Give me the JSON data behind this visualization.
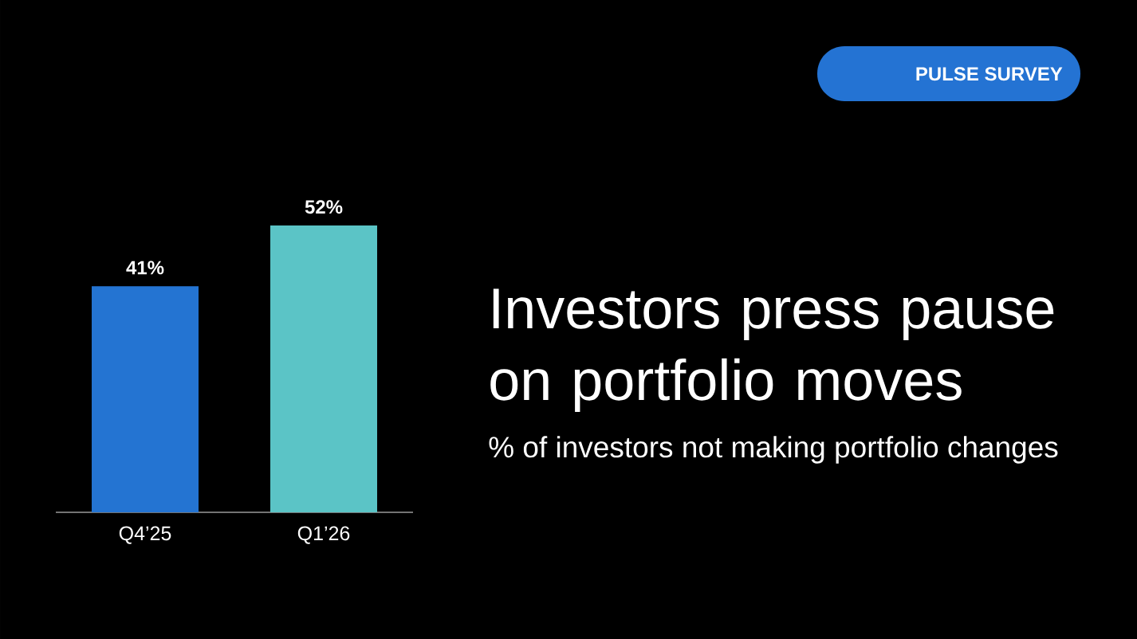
{
  "chart_data": {
    "type": "bar",
    "title": "Investors press pause on portfolio moves",
    "subtitle": "% of investors not making portfolio changes",
    "categories": [
      "Q4’25",
      "Q1’26"
    ],
    "values": [
      41,
      52
    ],
    "colors": [
      "#2474d2",
      "#5bc4c6"
    ],
    "value_labels": [
      "41%",
      "52%"
    ],
    "annotations": [
      "PULSE SURVEY"
    ]
  }
}
